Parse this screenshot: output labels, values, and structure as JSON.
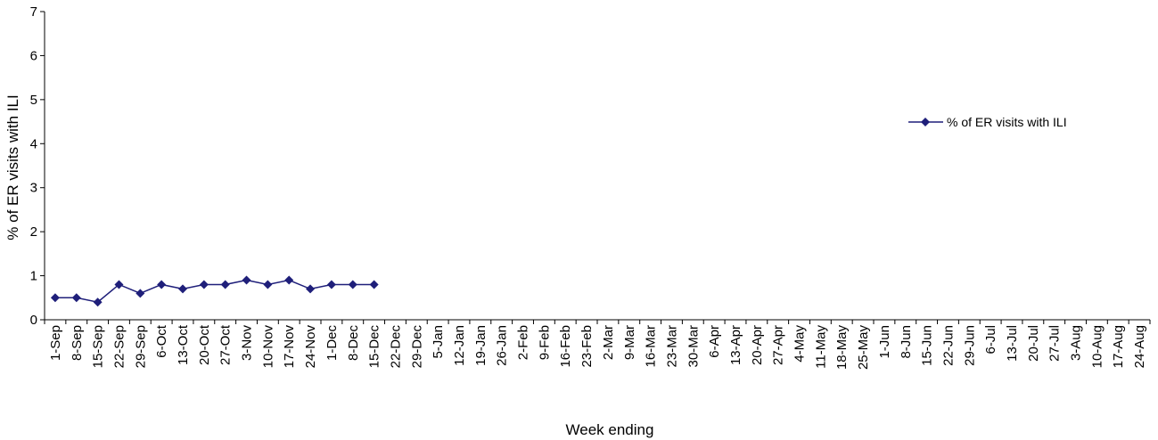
{
  "chart_data": {
    "type": "line",
    "xlabel": "Week ending",
    "ylabel": "% of ER visits with ILI",
    "ylim": [
      0,
      7
    ],
    "yticks": [
      "0",
      "1",
      "2",
      "3",
      "4",
      "5",
      "6",
      "7"
    ],
    "grid": false,
    "legend_position": "right",
    "categories": [
      "1-Sep",
      "8-Sep",
      "15-Sep",
      "22-Sep",
      "29-Sep",
      "6-Oct",
      "13-Oct",
      "20-Oct",
      "27-Oct",
      "3-Nov",
      "10-Nov",
      "17-Nov",
      "24-Nov",
      "1-Dec",
      "8-Dec",
      "15-Dec",
      "22-Dec",
      "29-Dec",
      "5-Jan",
      "12-Jan",
      "19-Jan",
      "26-Jan",
      "2-Feb",
      "9-Feb",
      "16-Feb",
      "23-Feb",
      "2-Mar",
      "9-Mar",
      "16-Mar",
      "23-Mar",
      "30-Mar",
      "6-Apr",
      "13-Apr",
      "20-Apr",
      "27-Apr",
      "4-May",
      "11-May",
      "18-May",
      "25-May",
      "1-Jun",
      "8-Jun",
      "15-Jun",
      "22-Jun",
      "29-Jun",
      "6-Jul",
      "13-Jul",
      "20-Jul",
      "27-Jul",
      "3-Aug",
      "10-Aug",
      "17-Aug",
      "24-Aug"
    ],
    "series": [
      {
        "name": "% of ER visits with ILI",
        "color": "#1f1f7a",
        "marker": "diamond",
        "values": [
          0.5,
          0.5,
          0.4,
          0.8,
          0.6,
          0.8,
          0.7,
          0.8,
          0.8,
          0.9,
          0.8,
          0.9,
          0.7,
          0.8,
          0.8,
          0.8,
          null,
          null,
          null,
          null,
          null,
          null,
          null,
          null,
          null,
          null,
          null,
          null,
          null,
          null,
          null,
          null,
          null,
          null,
          null,
          null,
          null,
          null,
          null,
          null,
          null,
          null,
          null,
          null,
          null,
          null,
          null,
          null,
          null,
          null,
          null,
          null
        ]
      }
    ]
  }
}
